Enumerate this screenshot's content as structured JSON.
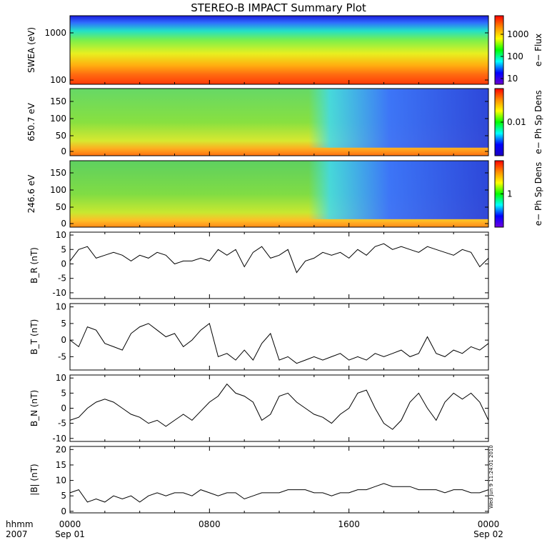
{
  "title": "STEREO-B IMPACT Summary Plot",
  "stamp": "Wed Jun  9 11:24:01 2010",
  "time_axis": {
    "row1_label": "hhmm",
    "row2_label": "2007",
    "ticks": [
      {
        "t": 0,
        "top": "0000",
        "bottom": "Sep 01"
      },
      {
        "t": 8,
        "top": "0800",
        "bottom": ""
      },
      {
        "t": 16,
        "top": "1600",
        "bottom": ""
      },
      {
        "t": 24,
        "top": "0000",
        "bottom": "Sep 02"
      }
    ],
    "range_hours": [
      0,
      24
    ]
  },
  "spectrograms": [
    {
      "ylabel": "SWEA (eV)",
      "yticks": [
        "1000",
        "100"
      ],
      "scale": "log",
      "cb_label": "e− Flux",
      "cb_ticks": [
        "1000",
        "100",
        "10"
      ],
      "cb_colors": [
        "#ff0000",
        "#ff8c00",
        "#ffff00",
        "#00ff00",
        "#00ffff",
        "#0000ff",
        "#6a00d0"
      ]
    },
    {
      "ylabel": "650.7 eV",
      "yticks": [
        "150",
        "100",
        "50",
        "0"
      ],
      "cb_label": "e− Ph Sp Dens",
      "cb_ticks": [
        "0.01"
      ],
      "cb_colors": [
        "#ff0000",
        "#ff8c00",
        "#ffff00",
        "#00ff00",
        "#00ffff",
        "#0000ff",
        "#1b00c0"
      ]
    },
    {
      "ylabel": "246.6 eV",
      "yticks": [
        "150",
        "100",
        "50",
        "0"
      ],
      "cb_label": "e− Ph Sp Dens",
      "cb_ticks": [
        "1"
      ],
      "cb_colors": [
        "#ff0000",
        "#ff8c00",
        "#ffff00",
        "#00ff00",
        "#00ffff",
        "#0000ff",
        "#7000e0"
      ]
    }
  ],
  "chart_data": {
    "type": "line",
    "x_label": "hhmm",
    "x": [
      0,
      0.5,
      1,
      1.5,
      2,
      2.5,
      3,
      3.5,
      4,
      4.5,
      5,
      5.5,
      6,
      6.5,
      7,
      7.5,
      8,
      8.5,
      9,
      9.5,
      10,
      10.5,
      11,
      11.5,
      12,
      12.5,
      13,
      13.5,
      14,
      14.5,
      15,
      15.5,
      16,
      16.5,
      17,
      17.5,
      18,
      18.5,
      19,
      19.5,
      20,
      20.5,
      21,
      21.5,
      22,
      22.5,
      23,
      23.5,
      24
    ],
    "series": [
      {
        "name": "BR (nT)",
        "ylabel": "B_R (nT)",
        "ylim": [
          -12,
          11
        ],
        "yticks": [
          10,
          5,
          0,
          -5,
          -10
        ],
        "values": [
          1,
          5,
          6,
          2,
          3,
          4,
          3,
          1,
          3,
          2,
          4,
          3,
          0,
          1,
          1,
          2,
          1,
          5,
          3,
          5,
          -1,
          4,
          6,
          2,
          3,
          5,
          -3,
          1,
          2,
          4,
          3,
          4,
          2,
          5,
          3,
          6,
          7,
          5,
          6,
          5,
          4,
          6,
          5,
          4,
          3,
          5,
          4,
          -1,
          2
        ]
      },
      {
        "name": "BT (nT)",
        "ylabel": "B_T (nT)",
        "ylim": [
          -9,
          11
        ],
        "yticks": [
          10,
          5,
          0,
          -5
        ],
        "values": [
          0,
          -2,
          4,
          3,
          -1,
          -2,
          -3,
          2,
          4,
          5,
          3,
          1,
          2,
          -2,
          0,
          3,
          5,
          -5,
          -4,
          -6,
          -3,
          -6,
          -1,
          2,
          -6,
          -5,
          -7,
          -6,
          -5,
          -6,
          -5,
          -4,
          -6,
          -5,
          -6,
          -4,
          -5,
          -4,
          -3,
          -5,
          -4,
          1,
          -4,
          -5,
          -3,
          -4,
          -2,
          -3,
          -1
        ]
      },
      {
        "name": "BN (nT)",
        "ylabel": "B_N (nT)",
        "ylim": [
          -11,
          11
        ],
        "yticks": [
          10,
          5,
          0,
          -5,
          -10
        ],
        "values": [
          -4,
          -3,
          0,
          2,
          3,
          2,
          0,
          -2,
          -3,
          -5,
          -4,
          -6,
          -4,
          -2,
          -4,
          -1,
          2,
          4,
          8,
          5,
          4,
          2,
          -4,
          -2,
          4,
          5,
          2,
          0,
          -2,
          -3,
          -5,
          -2,
          0,
          5,
          6,
          0,
          -5,
          -7,
          -4,
          2,
          5,
          0,
          -4,
          2,
          5,
          3,
          5,
          2,
          -4
        ]
      },
      {
        "name": "|B| (nT)",
        "ylabel": "|B| (nT)",
        "ylim": [
          -0.5,
          21
        ],
        "yticks": [
          20,
          15,
          10,
          5,
          0
        ],
        "values": [
          6,
          7,
          3,
          4,
          3,
          5,
          4,
          5,
          3,
          5,
          6,
          5,
          6,
          6,
          5,
          7,
          6,
          5,
          6,
          6,
          4,
          5,
          6,
          6,
          6,
          7,
          7,
          7,
          6,
          6,
          5,
          6,
          6,
          7,
          7,
          8,
          9,
          8,
          8,
          8,
          7,
          7,
          7,
          6,
          7,
          7,
          6,
          6,
          7
        ]
      }
    ]
  }
}
